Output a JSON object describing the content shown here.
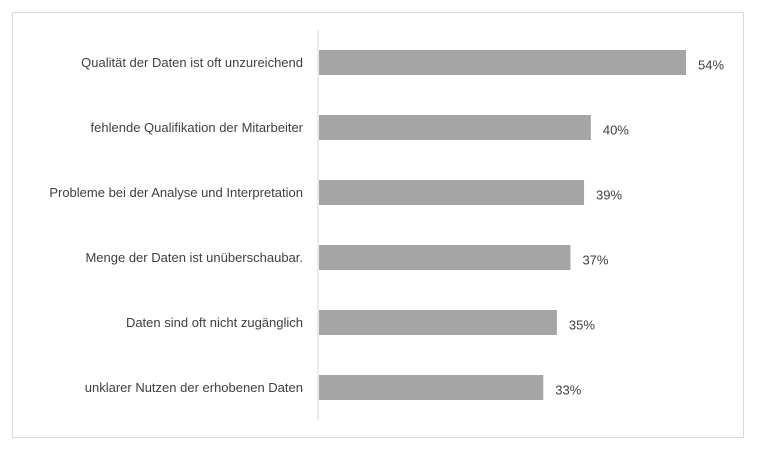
{
  "chart_data": {
    "type": "bar",
    "orientation": "horizontal",
    "title": "",
    "xlabel": "",
    "ylabel": "",
    "grid": false,
    "legend": "none",
    "value_suffix": "%",
    "xlim": [
      0,
      60
    ],
    "categories": [
      "Qualität der Daten ist oft unzureichend",
      "fehlende Qualifikation der Mitarbeiter",
      "Probleme bei der Analyse und Interpretation",
      "Menge der Daten ist unüberschaubar.",
      "Daten sind oft nicht zugänglich",
      "unklarer Nutzen der erhobenen Daten"
    ],
    "values": [
      54,
      40,
      39,
      37,
      35,
      33
    ],
    "value_labels": [
      "54%",
      "40%",
      "39%",
      "37%",
      "35%",
      "33%"
    ],
    "colors": {
      "bar": "#a5a5a5",
      "axis": "#d9d9d9",
      "text": "#404040"
    }
  }
}
